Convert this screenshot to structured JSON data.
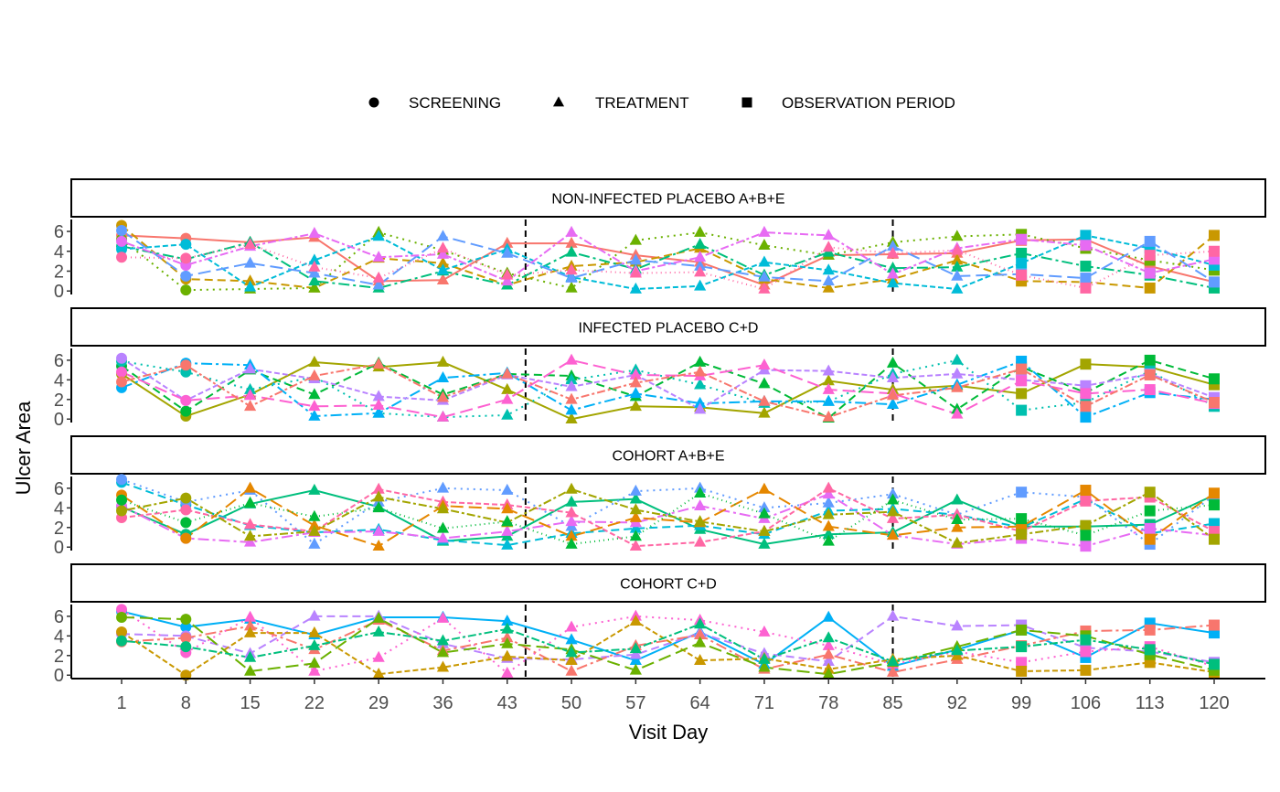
{
  "chart_data": {
    "type": "line",
    "xlabel": "Visit Day",
    "ylabel": "Ulcer Area",
    "x": [
      1,
      8,
      15,
      22,
      29,
      36,
      43,
      50,
      57,
      64,
      71,
      78,
      85,
      92,
      99,
      106,
      113,
      120
    ],
    "x_tick_labels": [
      "1",
      "8",
      "15",
      "22",
      "29",
      "36",
      "43",
      "50",
      "57",
      "64",
      "71",
      "78",
      "85",
      "92",
      "99",
      "106",
      "113",
      "120"
    ],
    "y_ticks": [
      0,
      2,
      4,
      6
    ],
    "y_tick_labels": [
      "0",
      "2",
      "4",
      "6"
    ],
    "ylim": [
      -0.35,
      7.2
    ],
    "vlines": [
      45,
      85
    ],
    "legend": {
      "position": "top",
      "entries": [
        {
          "label": "SCREENING",
          "shape": "circle",
          "days": [
            1,
            8
          ]
        },
        {
          "label": "TREATMENT",
          "shape": "triangle",
          "days": [
            15,
            92
          ]
        },
        {
          "label": "OBSERVATION PERIOD",
          "shape": "square",
          "days": [
            99,
            120
          ]
        }
      ]
    },
    "palette": [
      "#F8766D",
      "#E58700",
      "#C99800",
      "#A3A500",
      "#6BB100",
      "#00BA38",
      "#00BF7D",
      "#00C0AF",
      "#00BCD8",
      "#00B0F6",
      "#619CFF",
      "#B983FF",
      "#E76BF3",
      "#FD61D1",
      "#FF67A4"
    ],
    "panels": [
      {
        "title": "NON-INFECTED PLACEBO A+B+E",
        "series": [
          {
            "values": [
              5.6,
              5.3,
              4.9,
              5.4,
              1.0,
              1.1,
              4.8,
              4.8,
              3.6,
              2.9,
              0.6,
              3.6,
              3.7,
              3.8,
              5.1,
              5.2,
              2.5,
              0.9
            ]
          },
          {
            "values": [
              6.6,
              1.2,
              1.0,
              0.3,
              3.3,
              2.8,
              0.6,
              2.5,
              2.9,
              4.3,
              1.2,
              0.3,
              1.2,
              3.1,
              1.0,
              0.9,
              0.3,
              5.6
            ]
          },
          {
            "values": [
              5.2,
              0.1,
              0.2,
              0.3,
              5.9,
              4.1,
              1.8,
              0.3,
              5.1,
              5.9,
              4.6,
              3.6,
              4.9,
              5.5,
              5.7,
              4.3,
              3.1,
              2.1
            ]
          },
          {
            "values": [
              4.5,
              3.2,
              4.9,
              1.0,
              0.3,
              2.0,
              0.6,
              3.9,
              2.2,
              4.7,
              1.6,
              3.9,
              2.3,
              2.4,
              3.8,
              2.5,
              1.6,
              0.3
            ]
          },
          {
            "values": [
              4.2,
              4.7,
              0.4,
              3.1,
              5.5,
              2.1,
              4.2,
              1.4,
              0.2,
              0.5,
              2.9,
              2.1,
              0.8,
              0.2,
              2.8,
              5.6,
              4.3,
              2.6
            ]
          },
          {
            "values": [
              6.1,
              1.5,
              2.8,
              1.8,
              0.6,
              5.5,
              3.8,
              1.3,
              3.1,
              2.5,
              1.4,
              1.0,
              4.5,
              1.5,
              1.7,
              1.3,
              5.0,
              0.9
            ]
          },
          {
            "values": [
              5.0,
              2.6,
              4.5,
              5.8,
              3.4,
              3.7,
              1.0,
              5.9,
              2.0,
              3.4,
              5.9,
              5.6,
              1.7,
              4.3,
              5.2,
              4.6,
              1.8,
              3.2
            ]
          },
          {
            "values": [
              3.4,
              3.3,
              4.7,
              2.4,
              1.3,
              4.3,
              1.6,
              2.1,
              1.8,
              1.9,
              0.2,
              4.4,
              3.8,
              4.1,
              1.6,
              0.3,
              3.6,
              4.0
            ]
          }
        ]
      },
      {
        "title": "INFECTED PLACEBO C+D",
        "series": [
          {
            "values": [
              4.6,
              0.3,
              2.5,
              5.8,
              5.3,
              5.8,
              3.0,
              0.0,
              1.3,
              1.2,
              0.6,
              3.9,
              3.0,
              3.4,
              2.6,
              5.6,
              5.3,
              3.5
            ]
          },
          {
            "values": [
              5.4,
              0.8,
              5.0,
              2.5,
              5.7,
              2.5,
              4.6,
              4.4,
              2.3,
              5.8,
              3.6,
              0.1,
              5.7,
              1.0,
              5.3,
              2.7,
              6.0,
              4.1
            ]
          },
          {
            "values": [
              5.9,
              4.8,
              3.0,
              4.3,
              0.6,
              0.2,
              0.4,
              4.0,
              5.0,
              3.5,
              1.6,
              1.8,
              4.6,
              6.0,
              0.9,
              1.7,
              4.9,
              1.3
            ]
          },
          {
            "values": [
              3.2,
              5.7,
              5.5,
              0.3,
              0.6,
              4.2,
              4.7,
              0.9,
              2.6,
              1.6,
              1.8,
              1.8,
              1.5,
              3.5,
              5.9,
              0.2,
              2.7,
              2.0
            ]
          },
          {
            "values": [
              6.2,
              1.9,
              5.1,
              4.1,
              2.3,
              1.9,
              4.5,
              3.3,
              4.5,
              1.0,
              5.0,
              4.9,
              4.2,
              4.6,
              4.0,
              3.4,
              4.6,
              2.2
            ]
          },
          {
            "values": [
              4.8,
              1.9,
              2.4,
              1.3,
              1.4,
              0.2,
              2.0,
              6.0,
              4.5,
              4.4,
              5.5,
              3.0,
              2.6,
              0.5,
              3.9,
              2.6,
              3.0,
              1.6
            ]
          },
          {
            "values": [
              3.8,
              5.5,
              1.3,
              4.4,
              5.6,
              2.2,
              4.6,
              2.0,
              3.7,
              4.8,
              1.8,
              0.2,
              2.4,
              3.2,
              5.1,
              1.3,
              4.5,
              1.7
            ]
          }
        ]
      },
      {
        "title": "COHORT A+B+E",
        "series": [
          {
            "values": [
              4.1,
              1.3,
              4.4,
              5.8,
              4.1,
              0.6,
              1.1,
              4.6,
              4.9,
              1.8,
              0.3,
              1.3,
              1.5,
              4.8,
              2.1,
              2.1,
              2.3,
              5.3
            ]
          },
          {
            "values": [
              6.6,
              4.3,
              2.2,
              1.5,
              1.8,
              0.7,
              0.2,
              1.4,
              1.9,
              2.2,
              1.3,
              3.7,
              3.9,
              3.3,
              2.0,
              4.9,
              1.4,
              2.4
            ]
          },
          {
            "values": [
              6.9,
              4.6,
              5.8,
              0.3,
              4.6,
              6.0,
              5.8,
              2.1,
              5.7,
              6.0,
              4.0,
              4.5,
              5.4,
              3.3,
              5.6,
              5.1,
              0.3,
              5.3
            ]
          },
          {
            "values": [
              4.2,
              0.9,
              0.5,
              1.5,
              1.6,
              0.9,
              1.6,
              2.6,
              2.5,
              4.2,
              2.9,
              5.4,
              1.2,
              0.3,
              0.9,
              0.1,
              1.9,
              1.2
            ]
          },
          {
            "values": [
              3.0,
              3.8,
              2.3,
              1.6,
              5.9,
              4.6,
              4.3,
              3.5,
              0.1,
              0.5,
              1.6,
              6.0,
              2.9,
              3.3,
              1.6,
              4.7,
              5.1,
              1.6
            ]
          },
          {
            "values": [
              5.3,
              0.9,
              6.0,
              2.2,
              0.1,
              4.2,
              3.9,
              1.1,
              3.0,
              2.5,
              5.9,
              2.1,
              1.2,
              2.0,
              2.1,
              5.8,
              0.8,
              5.5
            ]
          },
          {
            "values": [
              3.7,
              5.0,
              1.1,
              1.6,
              5.1,
              3.9,
              2.5,
              5.9,
              3.8,
              2.6,
              1.6,
              3.3,
              3.6,
              0.4,
              1.3,
              2.2,
              5.6,
              0.8
            ]
          },
          {
            "values": [
              4.8,
              2.5,
              4.5,
              3.1,
              4.0,
              1.9,
              2.6,
              0.3,
              1.1,
              5.5,
              3.4,
              0.6,
              4.8,
              2.8,
              2.9,
              1.2,
              3.7,
              4.3
            ]
          }
        ]
      },
      {
        "title": "COHORT C+D",
        "series": [
          {
            "values": [
              6.5,
              4.9,
              5.7,
              4.1,
              5.9,
              5.9,
              5.5,
              3.6,
              1.5,
              4.4,
              1.1,
              5.9,
              0.9,
              2.6,
              4.6,
              1.8,
              5.3,
              4.3
            ]
          },
          {
            "values": [
              4.2,
              4.0,
              2.2,
              6.0,
              6.0,
              3.2,
              1.7,
              1.6,
              2.1,
              4.3,
              2.2,
              1.4,
              6.0,
              5.0,
              5.1,
              2.8,
              2.4,
              1.3
            ]
          },
          {
            "values": [
              6.7,
              2.3,
              5.9,
              0.4,
              1.8,
              5.8,
              0.2,
              4.9,
              6.0,
              5.6,
              4.4,
              3.0,
              1.1,
              2.4,
              1.3,
              2.4,
              2.9,
              0.9
            ]
          },
          {
            "values": [
              3.4,
              3.8,
              5.0,
              2.6,
              5.6,
              2.5,
              3.8,
              0.4,
              3.0,
              4.1,
              0.6,
              2.1,
              0.3,
              1.6,
              3.0,
              4.5,
              4.6,
              5.1
            ]
          },
          {
            "values": [
              4.4,
              0.0,
              4.3,
              4.3,
              0.1,
              0.8,
              1.9,
              1.5,
              5.5,
              1.5,
              1.7,
              0.6,
              1.6,
              2.0,
              0.4,
              0.5,
              1.3,
              0.3
            ]
          },
          {
            "values": [
              5.9,
              5.7,
              0.4,
              1.2,
              5.8,
              2.3,
              3.2,
              2.6,
              0.5,
              3.3,
              0.8,
              0.1,
              1.3,
              2.9,
              4.6,
              4.0,
              2.1,
              0.5
            ]
          },
          {
            "values": [
              3.5,
              2.9,
              1.8,
              3.0,
              4.4,
              3.5,
              4.7,
              2.3,
              2.7,
              5.2,
              1.6,
              3.8,
              1.4,
              2.5,
              2.9,
              3.6,
              2.6,
              1.1
            ]
          }
        ]
      }
    ]
  }
}
